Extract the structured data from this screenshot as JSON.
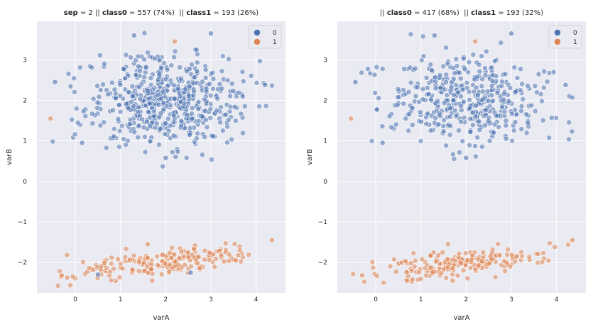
{
  "chart_data": [
    {
      "type": "scatter",
      "title_parts": [
        {
          "text": "sep",
          "bold": true
        },
        {
          "text": " = 2 || ",
          "bold": false
        },
        {
          "text": "class0",
          "bold": true
        },
        {
          "text": " = 557 (74%)  || ",
          "bold": false
        },
        {
          "text": "class1",
          "bold": true
        },
        {
          "text": " = 193 (26%)",
          "bold": false
        }
      ],
      "xlabel": "varA",
      "ylabel": "varB",
      "xlim": [
        -0.85,
        4.65
      ],
      "ylim": [
        -2.75,
        3.95
      ],
      "xticks": [
        0,
        1,
        2,
        3,
        4
      ],
      "yticks": [
        -2,
        -1,
        0,
        1,
        2,
        3
      ],
      "grid": true,
      "legend_position": "top-right",
      "series": [
        {
          "name": "0",
          "color": "#4c72b0",
          "count": 557,
          "cluster": {
            "x_mean": 2.0,
            "x_sd": 0.85,
            "y_mean": 2.0,
            "y_sd": 0.55
          }
        },
        {
          "name": "1",
          "color": "#dd8452",
          "count": 193,
          "cluster": {
            "x_mean": 1.9,
            "x_sd": 0.9,
            "y_mean": -2.0,
            "y_sd": 0.15
          }
        }
      ],
      "example_points": [
        {
          "series": "0",
          "x": -0.45,
          "y": 2.45
        },
        {
          "series": "0",
          "x": 4.2,
          "y": 2.38
        },
        {
          "series": "0",
          "x": 0.15,
          "y": 0.95
        },
        {
          "series": "0",
          "x": 2.0,
          "y": 0.58
        },
        {
          "series": "0",
          "x": 3.0,
          "y": 3.65
        },
        {
          "series": "0",
          "x": 1.3,
          "y": 3.6
        },
        {
          "series": "1",
          "x": -0.55,
          "y": 1.55
        },
        {
          "series": "1",
          "x": 2.2,
          "y": 3.45
        },
        {
          "series": "1",
          "x": -0.3,
          "y": -2.32
        },
        {
          "series": "1",
          "x": 4.35,
          "y": -1.45
        },
        {
          "series": "1",
          "x": 1.7,
          "y": -2.45
        },
        {
          "series": "1",
          "x": 1.6,
          "y": -1.55
        },
        {
          "series": "0",
          "x": 2.55,
          "y": -2.25
        },
        {
          "series": "0",
          "x": 0.5,
          "y": -2.3
        }
      ]
    },
    {
      "type": "scatter",
      "title_parts": [
        {
          "text": "|| ",
          "bold": false
        },
        {
          "text": "class0",
          "bold": true
        },
        {
          "text": " = 417 (68%)  || ",
          "bold": false
        },
        {
          "text": "class1",
          "bold": true
        },
        {
          "text": " = 193 (32%)",
          "bold": false
        }
      ],
      "xlabel": "varA",
      "ylabel": "varB",
      "xlim": [
        -0.85,
        4.65
      ],
      "ylim": [
        -2.75,
        3.95
      ],
      "xticks": [
        0,
        1,
        2,
        3,
        4
      ],
      "yticks": [
        -2,
        -1,
        0,
        1,
        2,
        3
      ],
      "grid": true,
      "legend_position": "top-right",
      "series": [
        {
          "name": "0",
          "color": "#4c72b0",
          "count": 417,
          "cluster": {
            "x_mean": 2.0,
            "x_sd": 0.85,
            "y_mean": 2.0,
            "y_sd": 0.55
          }
        },
        {
          "name": "1",
          "color": "#dd8452",
          "count": 193,
          "cluster": {
            "x_mean": 1.9,
            "x_sd": 0.9,
            "y_mean": -2.0,
            "y_sd": 0.15
          }
        }
      ],
      "example_points": [
        {
          "series": "0",
          "x": -0.45,
          "y": 2.45
        },
        {
          "series": "0",
          "x": 4.2,
          "y": 2.38
        },
        {
          "series": "0",
          "x": 0.15,
          "y": 0.95
        },
        {
          "series": "0",
          "x": 2.0,
          "y": 0.58
        },
        {
          "series": "0",
          "x": 3.0,
          "y": 3.65
        },
        {
          "series": "0",
          "x": 1.3,
          "y": 3.6
        },
        {
          "series": "1",
          "x": -0.55,
          "y": 1.55
        },
        {
          "series": "1",
          "x": 2.2,
          "y": 3.45
        },
        {
          "series": "1",
          "x": -0.3,
          "y": -2.32
        },
        {
          "series": "1",
          "x": 4.35,
          "y": -1.45
        },
        {
          "series": "1",
          "x": 1.7,
          "y": -2.45
        },
        {
          "series": "1",
          "x": 1.6,
          "y": -1.55
        }
      ]
    }
  ]
}
